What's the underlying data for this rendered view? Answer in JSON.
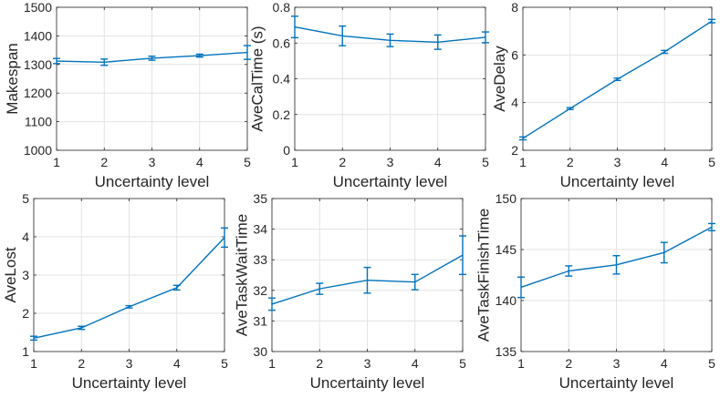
{
  "chart_data": [
    {
      "type": "line",
      "x": [
        1,
        2,
        3,
        4,
        5
      ],
      "values": [
        1312,
        1308,
        1322,
        1331,
        1342
      ],
      "errors": [
        9,
        11,
        7,
        5,
        24
      ],
      "xlabel": "Uncertainty level",
      "ylabel": "Makespan",
      "xlim": [
        1,
        5
      ],
      "ylim": [
        1000,
        1500
      ],
      "xticks": [
        1,
        2,
        3,
        4,
        5
      ],
      "yticks": [
        1000,
        1100,
        1200,
        1300,
        1400,
        1500
      ],
      "ytick_labels": [
        "1000",
        "1100",
        "1200",
        "1300",
        "1400",
        "1500"
      ],
      "grid": true,
      "color": "#0072bd"
    },
    {
      "type": "line",
      "x": [
        1,
        2,
        3,
        4,
        5
      ],
      "values": [
        0.69,
        0.64,
        0.615,
        0.605,
        0.632
      ],
      "errors": [
        0.06,
        0.055,
        0.035,
        0.04,
        0.03
      ],
      "xlabel": "Uncertainty level",
      "ylabel": "AveCalTime (s)",
      "xlim": [
        1,
        5
      ],
      "ylim": [
        0,
        0.8
      ],
      "xticks": [
        1,
        2,
        3,
        4,
        5
      ],
      "yticks": [
        0,
        0.2,
        0.4,
        0.6,
        0.8
      ],
      "ytick_labels": [
        "0",
        "0.2",
        "0.4",
        "0.6",
        "0.8"
      ],
      "grid": true,
      "color": "#0072bd"
    },
    {
      "type": "line",
      "x": [
        1,
        2,
        3,
        4,
        5
      ],
      "values": [
        2.5,
        3.75,
        4.98,
        6.13,
        7.42
      ],
      "errors": [
        0.06,
        0.04,
        0.05,
        0.06,
        0.07
      ],
      "xlabel": "Uncertainty level",
      "ylabel": "AveDelay",
      "xlim": [
        1,
        5
      ],
      "ylim": [
        2,
        8
      ],
      "xticks": [
        1,
        2,
        3,
        4,
        5
      ],
      "yticks": [
        2,
        4,
        6,
        8
      ],
      "ytick_labels": [
        "2",
        "4",
        "6",
        "8"
      ],
      "grid": true,
      "color": "#0072bd"
    },
    {
      "type": "line",
      "x": [
        1,
        2,
        3,
        4,
        5
      ],
      "values": [
        1.35,
        1.62,
        2.17,
        2.67,
        3.98
      ],
      "errors": [
        0.05,
        0.04,
        0.03,
        0.06,
        0.25
      ],
      "xlabel": "Uncertainty level",
      "ylabel": "AveLost",
      "xlim": [
        1,
        5
      ],
      "ylim": [
        1,
        5
      ],
      "xticks": [
        1,
        2,
        3,
        4,
        5
      ],
      "yticks": [
        1,
        2,
        3,
        4,
        5
      ],
      "ytick_labels": [
        "1",
        "2",
        "3",
        "4",
        "5"
      ],
      "grid": true,
      "color": "#0072bd"
    },
    {
      "type": "line",
      "x": [
        1,
        2,
        3,
        4,
        5
      ],
      "values": [
        31.55,
        32.05,
        32.33,
        32.27,
        33.15
      ],
      "errors": [
        0.2,
        0.18,
        0.42,
        0.25,
        0.63
      ],
      "xlabel": "Uncertainty level",
      "ylabel": "AveTaskWaitTime",
      "xlim": [
        1,
        5
      ],
      "ylim": [
        30,
        35
      ],
      "xticks": [
        1,
        2,
        3,
        4,
        5
      ],
      "yticks": [
        30,
        31,
        32,
        33,
        34,
        35
      ],
      "ytick_labels": [
        "30",
        "31",
        "32",
        "33",
        "34",
        "35"
      ],
      "grid": true,
      "color": "#0072bd"
    },
    {
      "type": "line",
      "x": [
        1,
        2,
        3,
        4,
        5
      ],
      "values": [
        141.3,
        142.9,
        143.5,
        144.7,
        147.2
      ],
      "errors": [
        1.0,
        0.5,
        0.9,
        1.0,
        0.35
      ],
      "xlabel": "Uncertainty level",
      "ylabel": "AveTaskFinishTime",
      "xlim": [
        1,
        5
      ],
      "ylim": [
        135,
        150
      ],
      "xticks": [
        1,
        2,
        3,
        4,
        5
      ],
      "yticks": [
        135,
        140,
        145,
        150
      ],
      "ytick_labels": [
        "135",
        "140",
        "145",
        "150"
      ],
      "grid": true,
      "color": "#0072bd"
    }
  ]
}
